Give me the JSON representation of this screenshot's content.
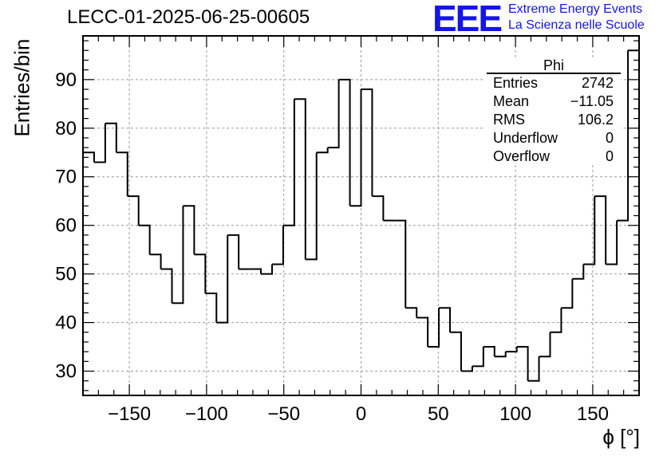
{
  "header": {
    "title": "LECC-01-2025-06-25-00605",
    "logo_text": "EEE",
    "org_line1": "Extreme Energy Events",
    "org_line2": "La Scienza nelle Scuole"
  },
  "colors": {
    "brand": "#1515e6",
    "line": "#000000",
    "grid": "#9a9a9a"
  },
  "chart_data": {
    "type": "histogram",
    "title": "LECC-01-2025-06-25-00605",
    "xlabel": "ϕ [°]",
    "ylabel": "Entries/bin",
    "xlim": [
      -180,
      180
    ],
    "ylim": [
      25,
      99
    ],
    "grid": true,
    "bin_width": 7.2,
    "x_ticks": [
      -150,
      -100,
      -50,
      0,
      50,
      100,
      150
    ],
    "x_tick_labels": [
      "−150",
      "−100",
      "−50",
      "0",
      "50",
      "100",
      "150"
    ],
    "y_ticks": [
      30,
      40,
      50,
      60,
      70,
      80,
      90
    ],
    "y_tick_labels": [
      "30",
      "40",
      "50",
      "60",
      "70",
      "80",
      "90"
    ],
    "bin_edges": [
      -180,
      -172.8,
      -165.6,
      -158.4,
      -151.2,
      -144,
      -136.8,
      -129.6,
      -122.4,
      -115.2,
      -108,
      -100.8,
      -93.6,
      -86.4,
      -79.2,
      -72,
      -64.8,
      -57.6,
      -50.4,
      -43.2,
      -36,
      -28.8,
      -21.6,
      -14.4,
      -7.2,
      0,
      7.2,
      14.4,
      21.6,
      28.8,
      36,
      43.2,
      50.4,
      57.6,
      64.8,
      72,
      79.2,
      86.4,
      93.6,
      100.8,
      108,
      115.2,
      122.4,
      129.6,
      136.8,
      144,
      151.2,
      158.4,
      165.6,
      172.8,
      180
    ],
    "values": [
      75,
      73,
      81,
      75,
      66,
      60,
      54,
      51,
      44,
      64,
      54,
      46,
      40,
      58,
      51,
      51,
      50,
      52,
      60,
      86,
      53,
      75,
      76,
      90,
      64,
      88,
      66,
      61,
      61,
      43,
      41,
      35,
      43,
      38,
      30,
      31,
      35,
      33,
      34,
      35,
      28,
      33,
      38,
      43,
      49,
      52,
      66,
      52,
      61,
      96
    ],
    "stats": {
      "name": "Phi",
      "rows": [
        {
          "label": "Entries",
          "value": "2742"
        },
        {
          "label": "Mean",
          "value": "−11.05"
        },
        {
          "label": "RMS",
          "value": "106.2"
        },
        {
          "label": "Underflow",
          "value": "0"
        },
        {
          "label": "Overflow",
          "value": "0"
        }
      ]
    }
  }
}
